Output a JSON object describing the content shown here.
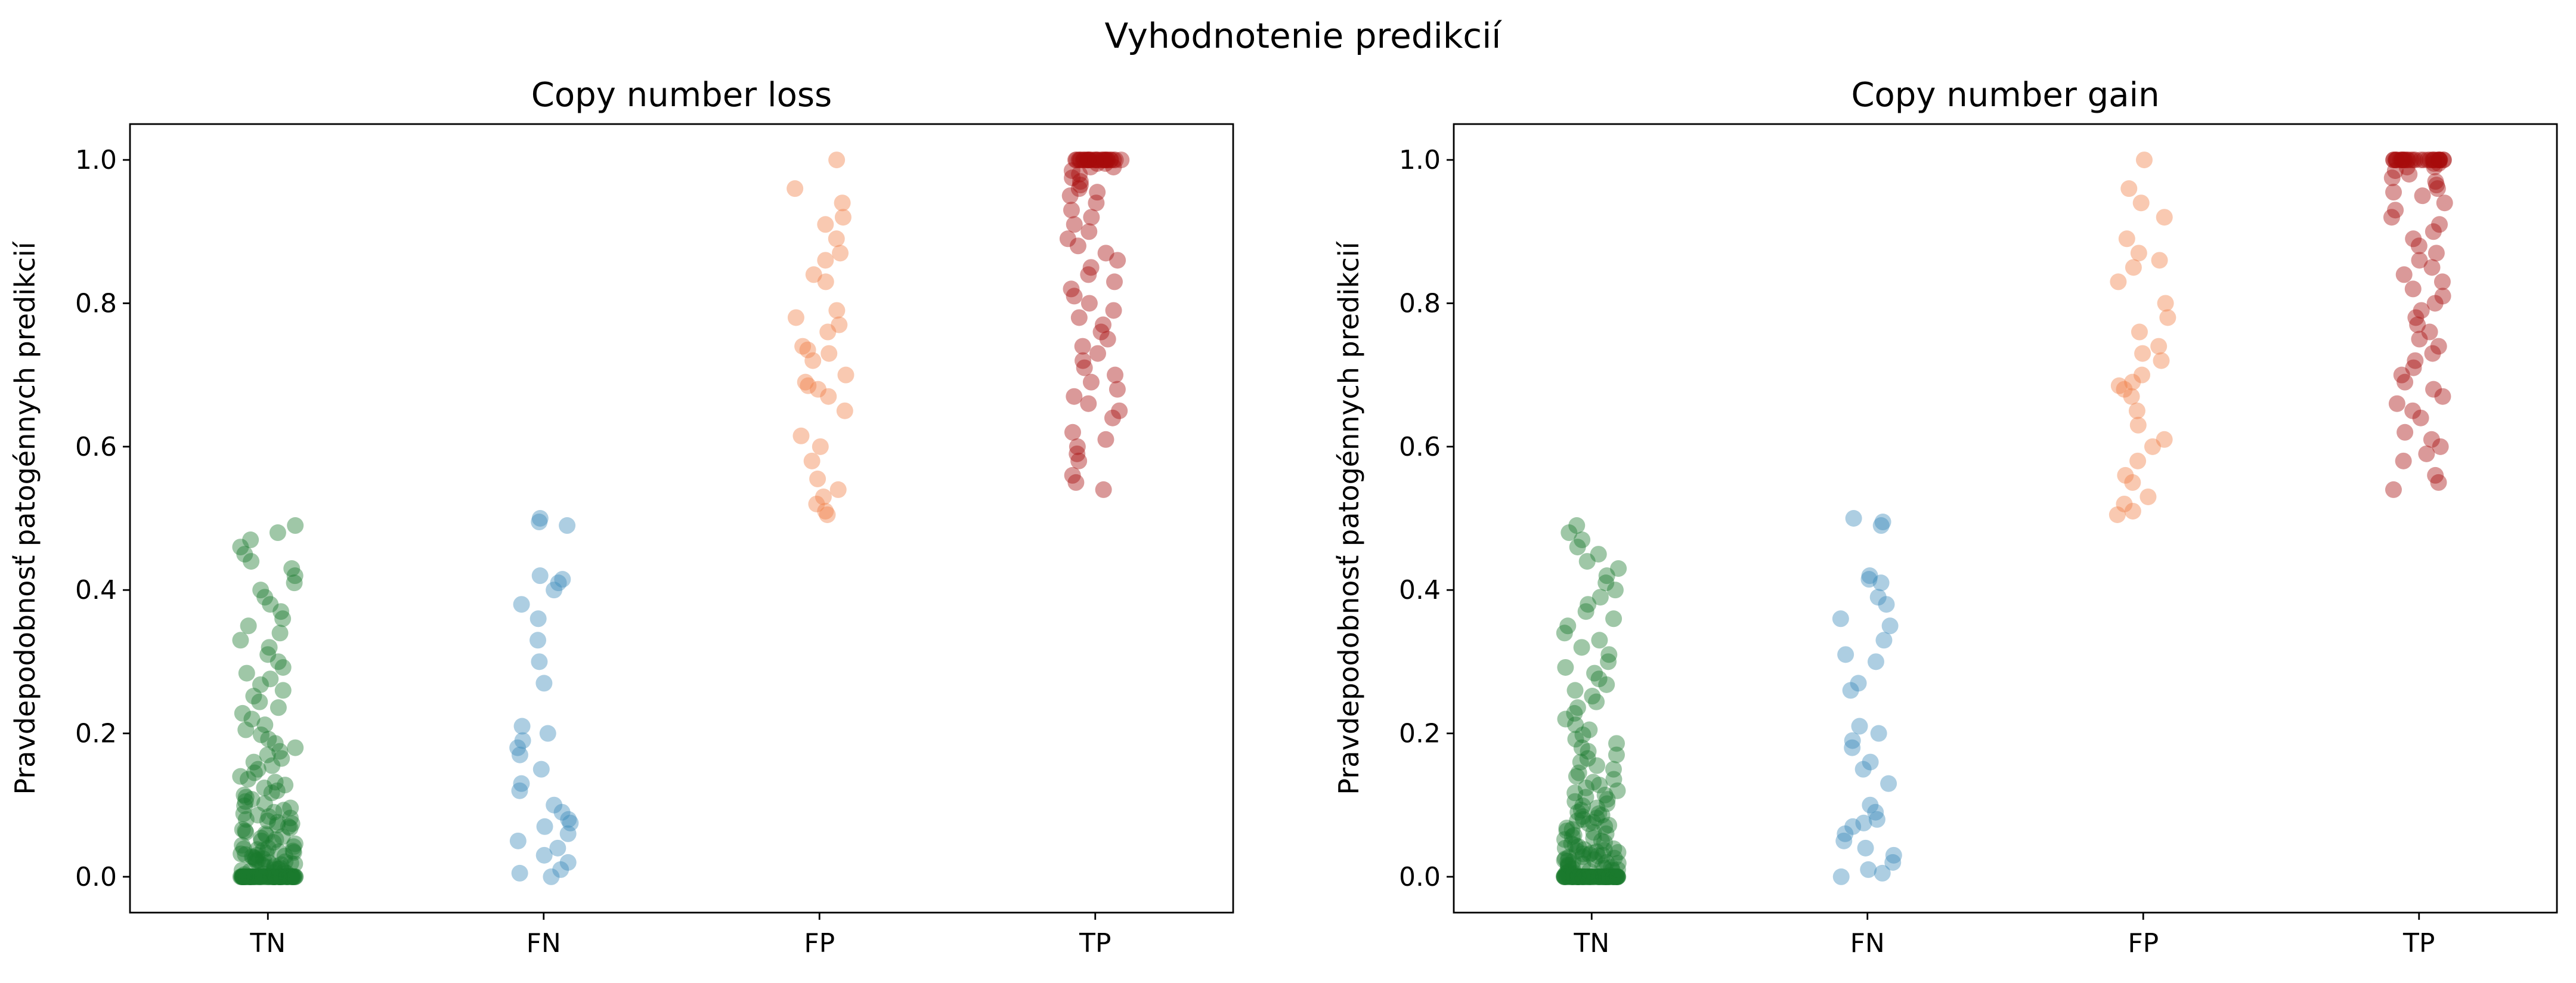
{
  "figure": {
    "suptitle": "Vyhodnotenie predikcií"
  },
  "chart_data": [
    {
      "type": "scatter",
      "title": "Copy number loss",
      "xlabel": "",
      "ylabel": "Pravdepodobnosť patogénnych predikcií",
      "categories": [
        "TN",
        "FN",
        "FP",
        "TP"
      ],
      "ylim": [
        -0.05,
        1.05
      ],
      "yticks": [
        "0.0",
        "0.2",
        "0.4",
        "0.6",
        "0.8",
        "1.0"
      ],
      "grid": false,
      "jitter": 0.1,
      "series": [
        {
          "category": "TN",
          "color": "#1a7a2e",
          "values": [
            0.0,
            0.0,
            0.0,
            0.0,
            0.0,
            0.0,
            0.0,
            0.0,
            0.0,
            0.0,
            0.0,
            0.0,
            0.0,
            0.0,
            0.0,
            0.0,
            0.0,
            0.0,
            0.0,
            0.0,
            0.0,
            0.0,
            0.0,
            0.0,
            0.0,
            0.0,
            0.0,
            0.0,
            0.0,
            0.0,
            0.0,
            0.0,
            0.0,
            0.0,
            0.0,
            0.0,
            0.0,
            0.0,
            0.0,
            0.0,
            0.0,
            0.0,
            0.0,
            0.0,
            0.0,
            0.0,
            0.0,
            0.0,
            0.0,
            0.0,
            0.0,
            0.0,
            0.0,
            0.0,
            0.0,
            0.0,
            0.0,
            0.0,
            0.0,
            0.0,
            0.0,
            0.0,
            0.0,
            0.0,
            0.0,
            0.0,
            0.0,
            0.0,
            0.0,
            0.0,
            0.0,
            0.0,
            0.0,
            0.0,
            0.0,
            0.0,
            0.0,
            0.0,
            0.0,
            0.0,
            0.001,
            0.001,
            0.002,
            0.003,
            0.004,
            0.005,
            0.006,
            0.007,
            0.008,
            0.009,
            0.01,
            0.011,
            0.012,
            0.013,
            0.014,
            0.015,
            0.016,
            0.017,
            0.018,
            0.019,
            0.02,
            0.021,
            0.022,
            0.023,
            0.024,
            0.025,
            0.026,
            0.027,
            0.028,
            0.029,
            0.03,
            0.031,
            0.032,
            0.033,
            0.034,
            0.035,
            0.036,
            0.037,
            0.038,
            0.039,
            0.04,
            0.042,
            0.044,
            0.046,
            0.048,
            0.05,
            0.052,
            0.054,
            0.056,
            0.058,
            0.06,
            0.062,
            0.064,
            0.066,
            0.068,
            0.07,
            0.072,
            0.074,
            0.076,
            0.078,
            0.08,
            0.082,
            0.084,
            0.086,
            0.088,
            0.09,
            0.093,
            0.096,
            0.099,
            0.102,
            0.105,
            0.108,
            0.111,
            0.114,
            0.117,
            0.12,
            0.124,
            0.128,
            0.132,
            0.136,
            0.14,
            0.145,
            0.15,
            0.155,
            0.16,
            0.165,
            0.17,
            0.175,
            0.18,
            0.186,
            0.192,
            0.198,
            0.205,
            0.212,
            0.22,
            0.228,
            0.236,
            0.244,
            0.252,
            0.26,
            0.268,
            0.276,
            0.284,
            0.292,
            0.3,
            0.31,
            0.32,
            0.33,
            0.34,
            0.35,
            0.36,
            0.37,
            0.38,
            0.39,
            0.4,
            0.41,
            0.42,
            0.43,
            0.44,
            0.45,
            0.46,
            0.47,
            0.48,
            0.49
          ]
        },
        {
          "category": "FN",
          "color": "#3b8bba",
          "values": [
            0.0,
            0.005,
            0.01,
            0.02,
            0.03,
            0.04,
            0.05,
            0.06,
            0.07,
            0.075,
            0.08,
            0.09,
            0.1,
            0.12,
            0.13,
            0.15,
            0.17,
            0.18,
            0.19,
            0.2,
            0.21,
            0.27,
            0.3,
            0.33,
            0.36,
            0.38,
            0.4,
            0.41,
            0.415,
            0.42,
            0.49,
            0.495,
            0.5
          ]
        },
        {
          "category": "FP",
          "color": "#f07f44",
          "values": [
            0.505,
            0.51,
            0.52,
            0.53,
            0.54,
            0.555,
            0.58,
            0.6,
            0.615,
            0.65,
            0.67,
            0.68,
            0.685,
            0.69,
            0.7,
            0.72,
            0.73,
            0.735,
            0.74,
            0.76,
            0.77,
            0.78,
            0.79,
            0.83,
            0.84,
            0.86,
            0.87,
            0.89,
            0.91,
            0.92,
            0.94,
            0.96,
            1.0
          ]
        },
        {
          "category": "TP",
          "color": "#a60d0d",
          "values": [
            0.54,
            0.55,
            0.56,
            0.58,
            0.59,
            0.6,
            0.61,
            0.62,
            0.64,
            0.65,
            0.66,
            0.67,
            0.68,
            0.69,
            0.7,
            0.71,
            0.72,
            0.73,
            0.74,
            0.75,
            0.76,
            0.77,
            0.78,
            0.79,
            0.8,
            0.81,
            0.82,
            0.83,
            0.84,
            0.85,
            0.86,
            0.87,
            0.88,
            0.89,
            0.9,
            0.91,
            0.92,
            0.93,
            0.94,
            0.95,
            0.955,
            0.96,
            0.965,
            0.97,
            0.975,
            0.98,
            0.985,
            0.99,
            0.99,
            0.995,
            0.995,
            1.0,
            1.0,
            1.0,
            1.0,
            1.0,
            1.0,
            1.0,
            1.0,
            1.0,
            1.0,
            1.0,
            1.0,
            1.0,
            1.0,
            1.0,
            1.0,
            1.0,
            1.0,
            1.0,
            1.0,
            1.0,
            1.0,
            1.0,
            1.0,
            1.0,
            1.0,
            1.0,
            1.0,
            1.0,
            1.0
          ]
        }
      ]
    },
    {
      "type": "scatter",
      "title": "Copy number gain",
      "xlabel": "",
      "ylabel": "Pravdepodobnosť patogénnych predikcií",
      "categories": [
        "TN",
        "FN",
        "FP",
        "TP"
      ],
      "ylim": [
        -0.05,
        1.05
      ],
      "yticks": [
        "0.0",
        "0.2",
        "0.4",
        "0.6",
        "0.8",
        "1.0"
      ],
      "grid": false,
      "jitter": 0.1,
      "series": [
        {
          "category": "TN",
          "color": "#1a7a2e",
          "values": [
            0.0,
            0.0,
            0.0,
            0.0,
            0.0,
            0.0,
            0.0,
            0.0,
            0.0,
            0.0,
            0.0,
            0.0,
            0.0,
            0.0,
            0.0,
            0.0,
            0.0,
            0.0,
            0.0,
            0.0,
            0.0,
            0.0,
            0.0,
            0.0,
            0.0,
            0.0,
            0.0,
            0.0,
            0.0,
            0.0,
            0.0,
            0.0,
            0.0,
            0.0,
            0.0,
            0.0,
            0.0,
            0.0,
            0.0,
            0.0,
            0.0,
            0.0,
            0.0,
            0.0,
            0.0,
            0.0,
            0.0,
            0.0,
            0.0,
            0.0,
            0.0,
            0.0,
            0.0,
            0.0,
            0.0,
            0.0,
            0.0,
            0.0,
            0.0,
            0.0,
            0.0,
            0.0,
            0.0,
            0.0,
            0.0,
            0.0,
            0.0,
            0.0,
            0.0,
            0.0,
            0.0,
            0.0,
            0.0,
            0.0,
            0.0,
            0.0,
            0.0,
            0.0,
            0.0,
            0.0,
            0.001,
            0.002,
            0.003,
            0.004,
            0.005,
            0.006,
            0.007,
            0.008,
            0.009,
            0.01,
            0.011,
            0.012,
            0.013,
            0.014,
            0.015,
            0.016,
            0.017,
            0.018,
            0.019,
            0.02,
            0.021,
            0.022,
            0.023,
            0.024,
            0.025,
            0.026,
            0.027,
            0.028,
            0.029,
            0.03,
            0.031,
            0.032,
            0.033,
            0.034,
            0.035,
            0.036,
            0.037,
            0.038,
            0.039,
            0.04,
            0.042,
            0.044,
            0.046,
            0.048,
            0.05,
            0.052,
            0.054,
            0.056,
            0.058,
            0.06,
            0.062,
            0.064,
            0.066,
            0.068,
            0.07,
            0.072,
            0.074,
            0.076,
            0.078,
            0.08,
            0.082,
            0.084,
            0.086,
            0.088,
            0.09,
            0.093,
            0.096,
            0.099,
            0.102,
            0.105,
            0.108,
            0.111,
            0.114,
            0.117,
            0.12,
            0.124,
            0.128,
            0.132,
            0.136,
            0.14,
            0.145,
            0.15,
            0.155,
            0.16,
            0.165,
            0.17,
            0.175,
            0.18,
            0.186,
            0.192,
            0.198,
            0.205,
            0.212,
            0.22,
            0.228,
            0.236,
            0.244,
            0.252,
            0.26,
            0.268,
            0.276,
            0.284,
            0.292,
            0.3,
            0.31,
            0.32,
            0.33,
            0.34,
            0.35,
            0.36,
            0.37,
            0.38,
            0.39,
            0.4,
            0.41,
            0.42,
            0.43,
            0.44,
            0.45,
            0.46,
            0.47,
            0.48,
            0.49
          ]
        },
        {
          "category": "FN",
          "color": "#3b8bba",
          "values": [
            0.0,
            0.005,
            0.01,
            0.02,
            0.03,
            0.04,
            0.05,
            0.06,
            0.07,
            0.075,
            0.08,
            0.09,
            0.1,
            0.13,
            0.15,
            0.16,
            0.18,
            0.19,
            0.2,
            0.21,
            0.26,
            0.27,
            0.3,
            0.31,
            0.33,
            0.35,
            0.36,
            0.38,
            0.39,
            0.41,
            0.415,
            0.42,
            0.49,
            0.495,
            0.5
          ]
        },
        {
          "category": "FP",
          "color": "#f07f44",
          "values": [
            0.505,
            0.51,
            0.52,
            0.53,
            0.55,
            0.56,
            0.58,
            0.6,
            0.61,
            0.63,
            0.65,
            0.67,
            0.68,
            0.685,
            0.69,
            0.7,
            0.72,
            0.73,
            0.74,
            0.76,
            0.78,
            0.8,
            0.83,
            0.85,
            0.86,
            0.87,
            0.89,
            0.92,
            0.94,
            0.96,
            1.0
          ]
        },
        {
          "category": "TP",
          "color": "#a60d0d",
          "values": [
            0.54,
            0.55,
            0.56,
            0.58,
            0.59,
            0.6,
            0.61,
            0.62,
            0.64,
            0.65,
            0.66,
            0.67,
            0.68,
            0.69,
            0.7,
            0.71,
            0.72,
            0.73,
            0.74,
            0.75,
            0.76,
            0.77,
            0.78,
            0.79,
            0.8,
            0.81,
            0.82,
            0.83,
            0.84,
            0.85,
            0.86,
            0.87,
            0.88,
            0.89,
            0.9,
            0.91,
            0.92,
            0.93,
            0.94,
            0.95,
            0.955,
            0.96,
            0.965,
            0.97,
            0.975,
            0.98,
            0.985,
            0.99,
            0.99,
            0.995,
            0.995,
            1.0,
            1.0,
            1.0,
            1.0,
            1.0,
            1.0,
            1.0,
            1.0,
            1.0,
            1.0,
            1.0,
            1.0,
            1.0,
            1.0,
            1.0,
            1.0,
            1.0,
            1.0,
            1.0,
            1.0,
            1.0,
            1.0,
            1.0,
            1.0,
            1.0,
            1.0,
            1.0,
            1.0,
            1.0,
            1.0
          ]
        }
      ]
    }
  ]
}
